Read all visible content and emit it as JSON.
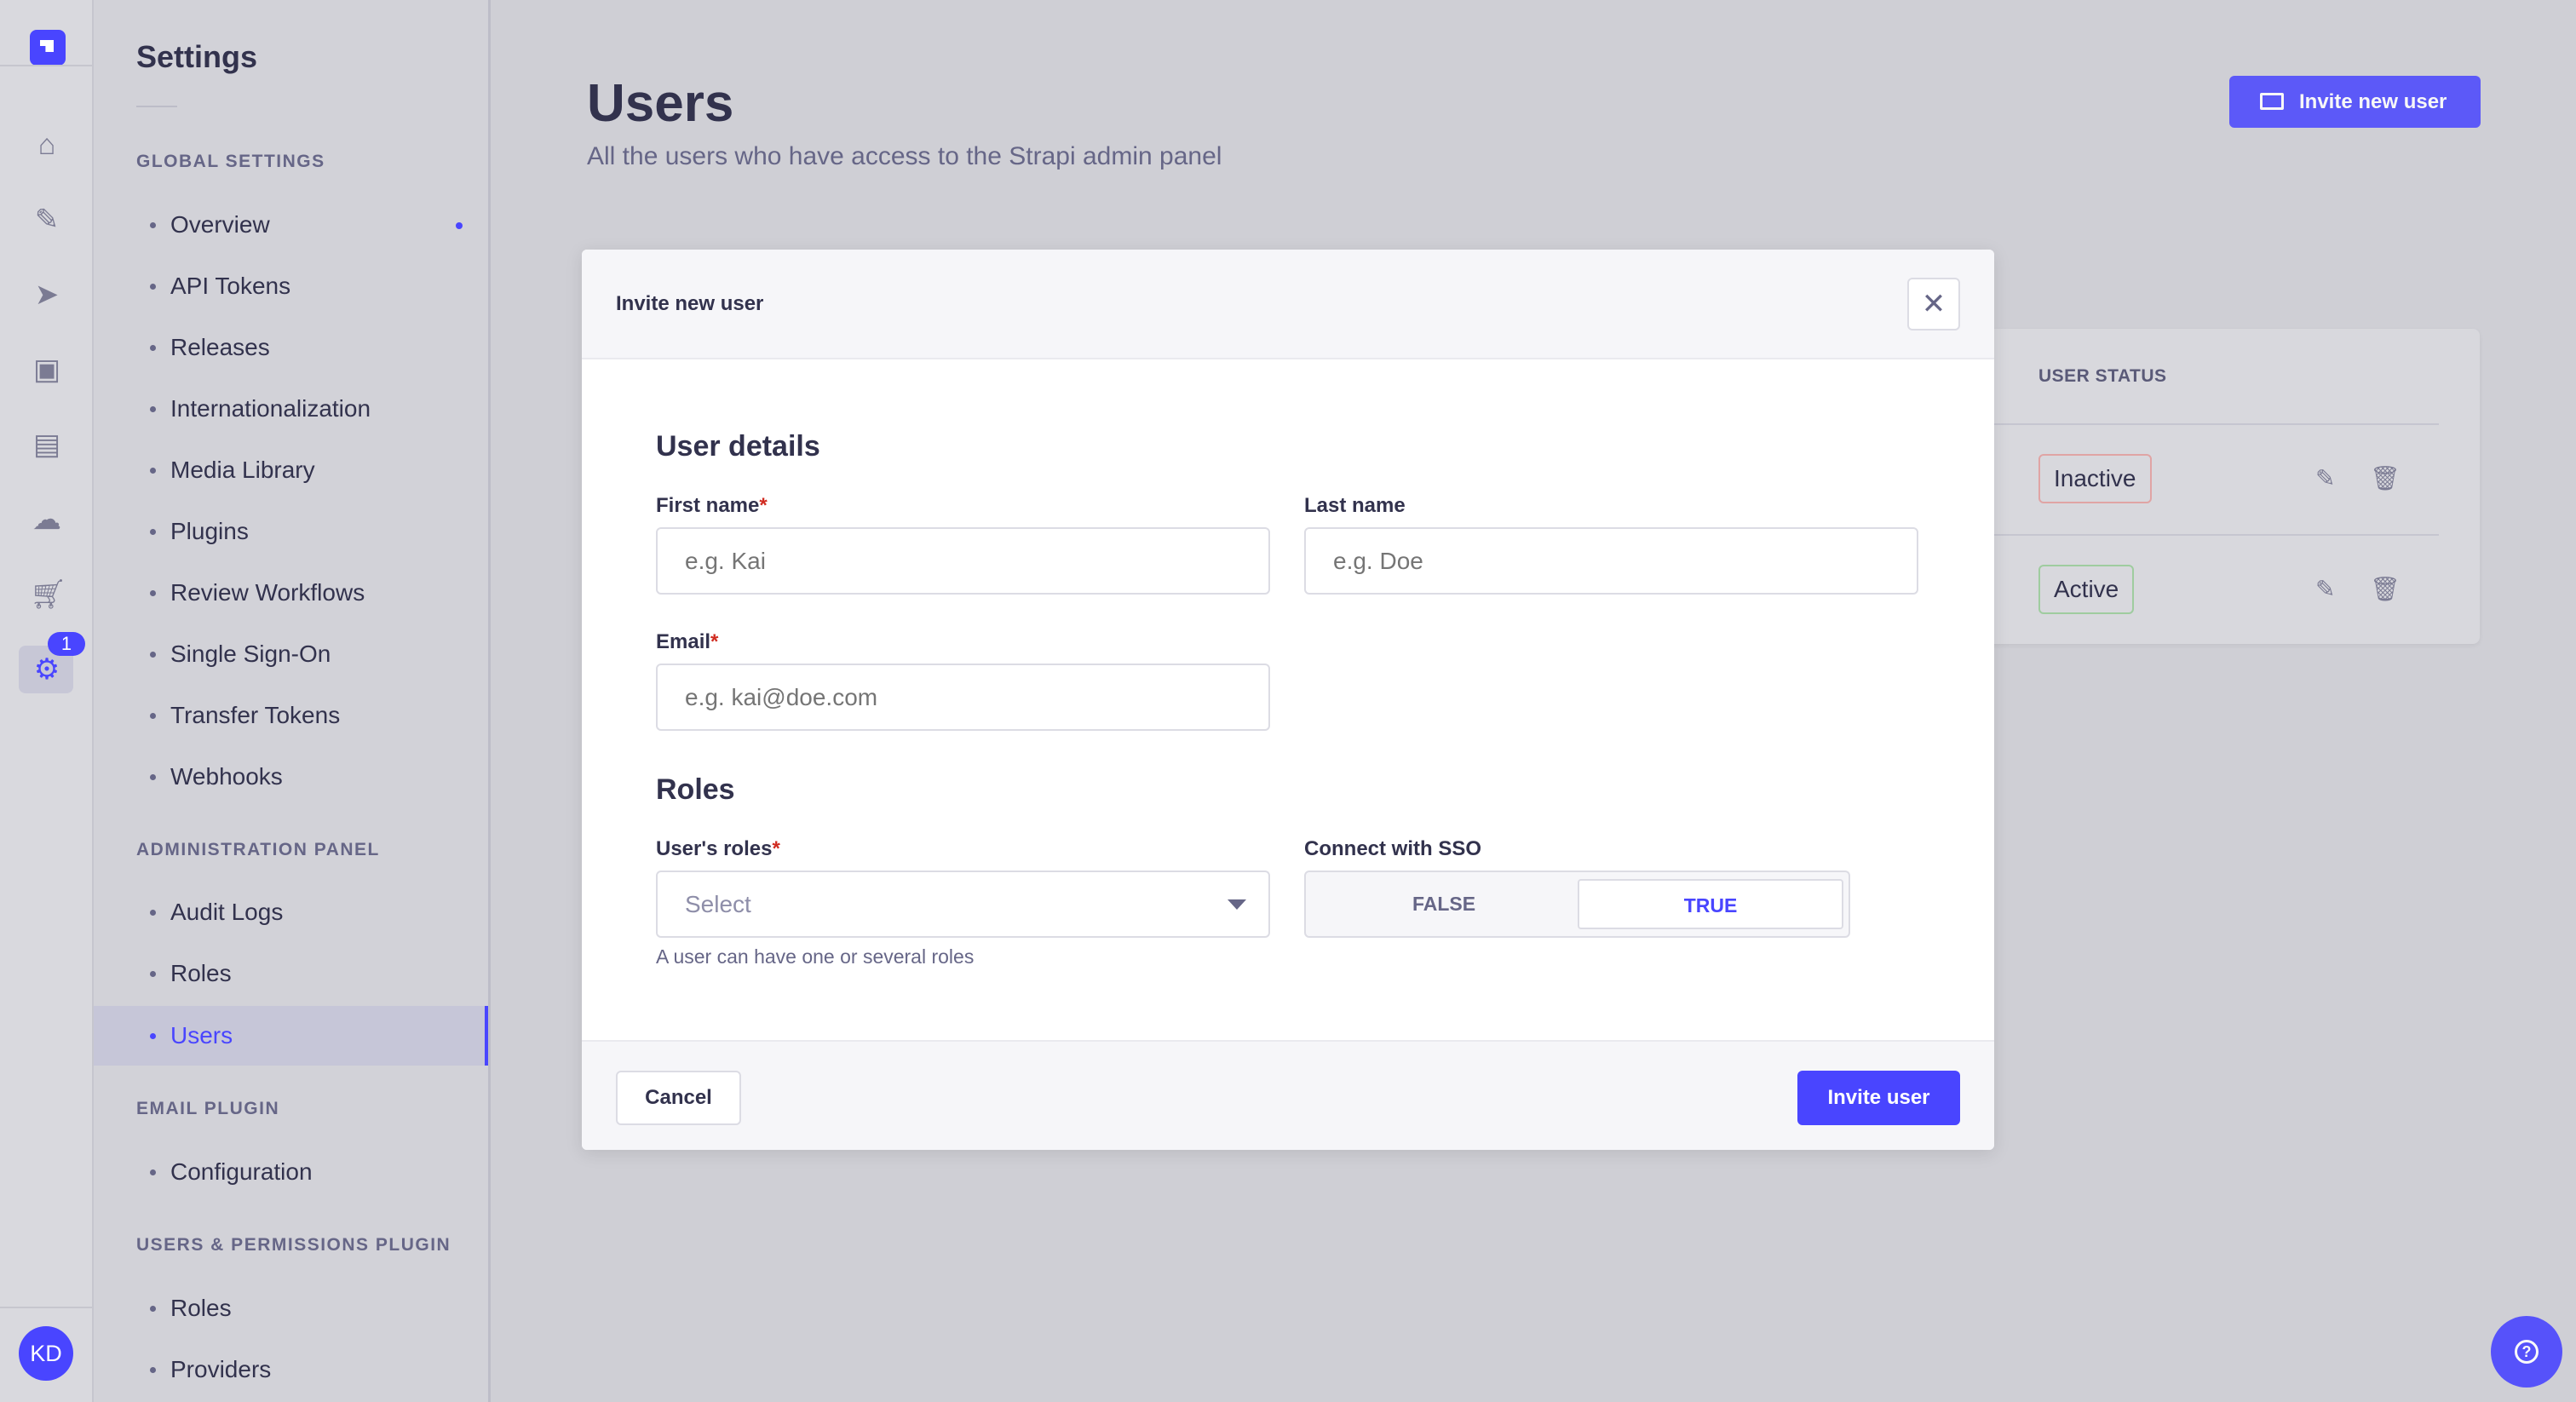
{
  "rail": {
    "badge": "1",
    "avatar": "KD",
    "icons": [
      "home-icon",
      "feather-icon",
      "paper-plane-icon",
      "images-icon",
      "layout-icon",
      "cloud-icon",
      "cart-icon",
      "gear-icon"
    ]
  },
  "sidebar": {
    "title": "Settings",
    "sections": [
      {
        "label": "GLOBAL SETTINGS",
        "items": [
          "Overview",
          "API Tokens",
          "Releases",
          "Internationalization",
          "Media Library",
          "Plugins",
          "Review Workflows",
          "Single Sign-On",
          "Transfer Tokens",
          "Webhooks"
        ]
      },
      {
        "label": "ADMINISTRATION PANEL",
        "items": [
          "Audit Logs",
          "Roles",
          "Users"
        ]
      },
      {
        "label": "EMAIL PLUGIN",
        "items": [
          "Configuration"
        ]
      },
      {
        "label": "USERS & PERMISSIONS PLUGIN",
        "items": [
          "Roles",
          "Providers"
        ]
      }
    ],
    "active_item": "Users"
  },
  "page": {
    "title": "Users",
    "subtitle": "All the users who have access to the Strapi admin panel",
    "invite_button": "Invite new user",
    "table": {
      "status_header": "USER STATUS",
      "rows": [
        {
          "status": "Inactive"
        },
        {
          "status": "Active"
        }
      ]
    }
  },
  "modal": {
    "title": "Invite new user",
    "user_details_heading": "User details",
    "first_name_label": "First name",
    "first_name_placeholder": "e.g. Kai",
    "last_name_label": "Last name",
    "last_name_placeholder": "e.g. Doe",
    "email_label": "Email",
    "email_placeholder": "e.g. kai@doe.com",
    "roles_heading": "Roles",
    "roles_label": "User's roles",
    "roles_value": "Select",
    "roles_hint": "A user can have one or several roles",
    "sso_label": "Connect with SSO",
    "sso_false": "FALSE",
    "sso_true": "TRUE",
    "sso_selected": "TRUE",
    "required_mark": "*",
    "cancel": "Cancel",
    "invite": "Invite user"
  },
  "colors": {
    "primary": "#4945ff",
    "inactive_border": "#e0a4a4",
    "active_border": "#9fcc9f"
  }
}
